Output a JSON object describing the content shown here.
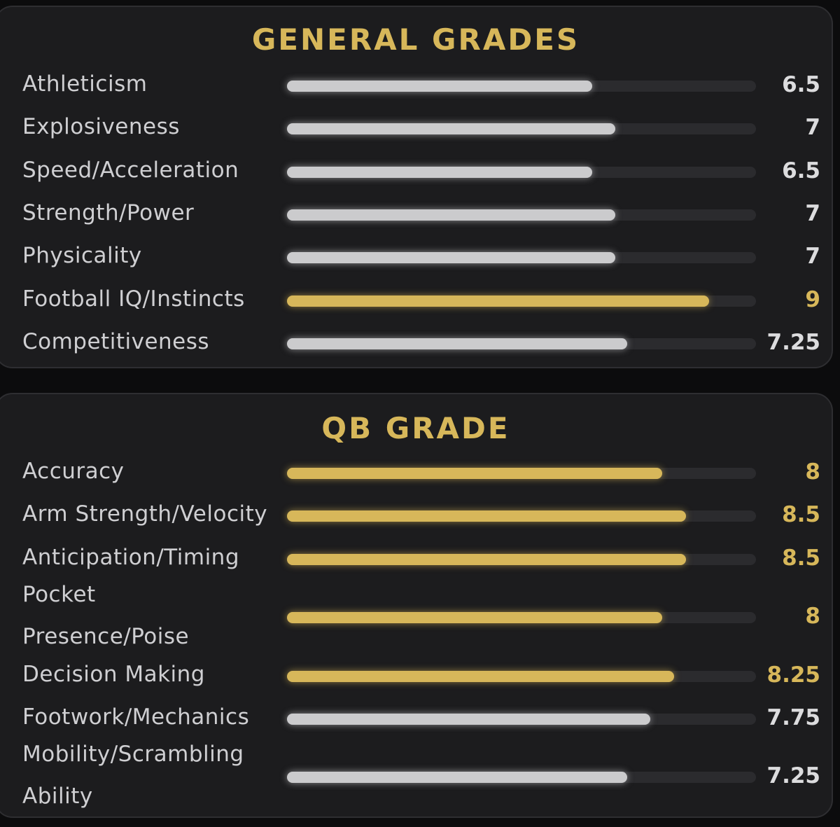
{
  "colors": {
    "background": "#0c0c0d",
    "panel": "#1c1c1e",
    "track": "#2b2b2e",
    "gold": "#d7b75a",
    "white_bar": "#cbcbcd",
    "label": "#cfcfd2"
  },
  "scale_max": 10,
  "general": {
    "title": "GENERAL GRADES",
    "items": [
      {
        "label": "Athleticism",
        "value": 6.5,
        "display": "6.5",
        "highlight": false
      },
      {
        "label": "Explosiveness",
        "value": 7,
        "display": "7",
        "highlight": false
      },
      {
        "label": "Speed/Acceleration",
        "value": 6.5,
        "display": "6.5",
        "highlight": false
      },
      {
        "label": "Strength/Power",
        "value": 7,
        "display": "7",
        "highlight": false
      },
      {
        "label": "Physicality",
        "value": 7,
        "display": "7",
        "highlight": false
      },
      {
        "label": "Football IQ/Instincts",
        "value": 9,
        "display": "9",
        "highlight": true
      },
      {
        "label": "Competitiveness",
        "value": 7.25,
        "display": "7.25",
        "highlight": false
      }
    ]
  },
  "qb": {
    "title": "QB GRADE",
    "items": [
      {
        "label": "Accuracy",
        "value": 8,
        "display": "8",
        "highlight": true
      },
      {
        "label": "Arm Strength/Velocity",
        "value": 8.5,
        "display": "8.5",
        "highlight": true
      },
      {
        "label": "Anticipation/Timing",
        "value": 8.5,
        "display": "8.5",
        "highlight": true
      },
      {
        "label": "Pocket Presence/Poise",
        "value": 8,
        "display": "8",
        "highlight": true
      },
      {
        "label": "Decision Making",
        "value": 8.25,
        "display": "8.25",
        "highlight": true
      },
      {
        "label": "Footwork/Mechanics",
        "value": 7.75,
        "display": "7.75",
        "highlight": false
      },
      {
        "label": "Mobility/Scrambling Ability",
        "value": 7.25,
        "display": "7.25",
        "highlight": false
      }
    ]
  }
}
